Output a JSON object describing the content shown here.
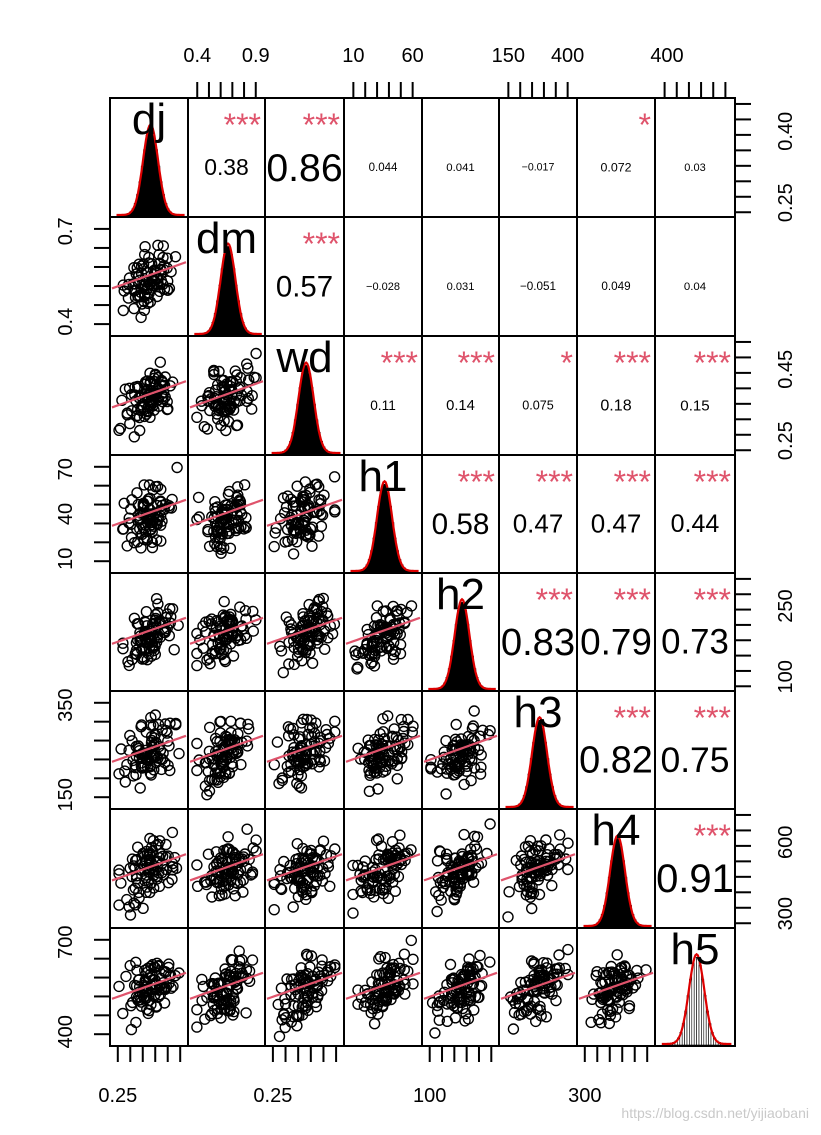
{
  "chart_data": {
    "type": "scatter-matrix",
    "title": "",
    "variables": [
      "dj",
      "dm",
      "wd",
      "h1",
      "h2",
      "h3",
      "h4",
      "h5"
    ],
    "correlations": [
      [
        null,
        0.38,
        0.86,
        0.044,
        0.041,
        -0.017,
        0.072,
        0.03
      ],
      [
        null,
        null,
        0.57,
        -0.028,
        0.031,
        -0.051,
        0.049,
        0.04
      ],
      [
        null,
        null,
        null,
        0.11,
        0.14,
        0.075,
        0.18,
        0.15
      ],
      [
        null,
        null,
        null,
        null,
        0.58,
        0.47,
        0.47,
        0.44
      ],
      [
        null,
        null,
        null,
        null,
        null,
        0.83,
        0.79,
        0.73
      ],
      [
        null,
        null,
        null,
        null,
        null,
        null,
        0.82,
        0.75
      ],
      [
        null,
        null,
        null,
        null,
        null,
        null,
        null,
        0.91
      ],
      [
        null,
        null,
        null,
        null,
        null,
        null,
        null,
        null
      ]
    ],
    "correlation_labels": [
      [
        null,
        "0.38",
        "0.86",
        "0.044",
        "0.041",
        "−0.017",
        "0.072",
        "0.03"
      ],
      [
        null,
        null,
        "0.57",
        "−0.028",
        "0.031",
        "−0.051",
        "0.049",
        "0.04"
      ],
      [
        null,
        null,
        null,
        "0.11",
        "0.14",
        "0.075",
        "0.18",
        "0.15"
      ],
      [
        null,
        null,
        null,
        null,
        "0.58",
        "0.47",
        "0.47",
        "0.44"
      ],
      [
        null,
        null,
        null,
        null,
        null,
        "0.83",
        "0.79",
        "0.73"
      ],
      [
        null,
        null,
        null,
        null,
        null,
        null,
        "0.82",
        "0.75"
      ],
      [
        null,
        null,
        null,
        null,
        null,
        null,
        null,
        "0.91"
      ],
      [
        null,
        null,
        null,
        null,
        null,
        null,
        null,
        null
      ]
    ],
    "significance": [
      [
        null,
        "***",
        "***",
        "",
        "",
        "",
        "*",
        ""
      ],
      [
        null,
        null,
        "***",
        "",
        "",
        "",
        "",
        ""
      ],
      [
        null,
        null,
        null,
        "***",
        "***",
        "*",
        "***",
        "***"
      ],
      [
        null,
        null,
        null,
        null,
        "***",
        "***",
        "***",
        "***"
      ],
      [
        null,
        null,
        null,
        null,
        null,
        "***",
        "***",
        "***"
      ],
      [
        null,
        null,
        null,
        null,
        null,
        null,
        "***",
        "***"
      ],
      [
        null,
        null,
        null,
        null,
        null,
        null,
        null,
        "***"
      ],
      [
        null,
        null,
        null,
        null,
        null,
        null,
        null,
        null
      ]
    ],
    "axes": {
      "top": [
        {
          "col": 1,
          "labels": [
            "0.4",
            "0.9"
          ]
        },
        {
          "col": 3,
          "labels": [
            "10",
            "60"
          ]
        },
        {
          "col": 5,
          "labels": [
            "150",
            "400"
          ]
        },
        {
          "col": 7,
          "labels": [
            "400"
          ]
        }
      ],
      "bottom": [
        {
          "col": 0,
          "labels": [
            "0.25"
          ]
        },
        {
          "col": 2,
          "labels": [
            "0.25"
          ]
        },
        {
          "col": 4,
          "labels": [
            "100"
          ]
        },
        {
          "col": 6,
          "labels": [
            "300"
          ]
        }
      ],
      "left": [
        {
          "row": 1,
          "labels": [
            "0.4",
            "0.7"
          ]
        },
        {
          "row": 3,
          "labels": [
            "10",
            "40",
            "70"
          ]
        },
        {
          "row": 5,
          "labels": [
            "150",
            "350"
          ]
        },
        {
          "row": 7,
          "labels": [
            "400",
            "700"
          ]
        }
      ],
      "right": [
        {
          "row": 0,
          "labels": [
            "0.25",
            "0.40"
          ]
        },
        {
          "row": 2,
          "labels": [
            "0.25",
            "0.45"
          ]
        },
        {
          "row": 4,
          "labels": [
            "100",
            "250"
          ]
        },
        {
          "row": 6,
          "labels": [
            "300",
            "600"
          ]
        }
      ]
    },
    "colors": {
      "points": "#000000",
      "smooth": "#df536b",
      "density": "#dd0000",
      "stars": "#df536b",
      "frame": "#000000"
    },
    "watermark": "https://blog.csdn.net/yijiaobani"
  }
}
